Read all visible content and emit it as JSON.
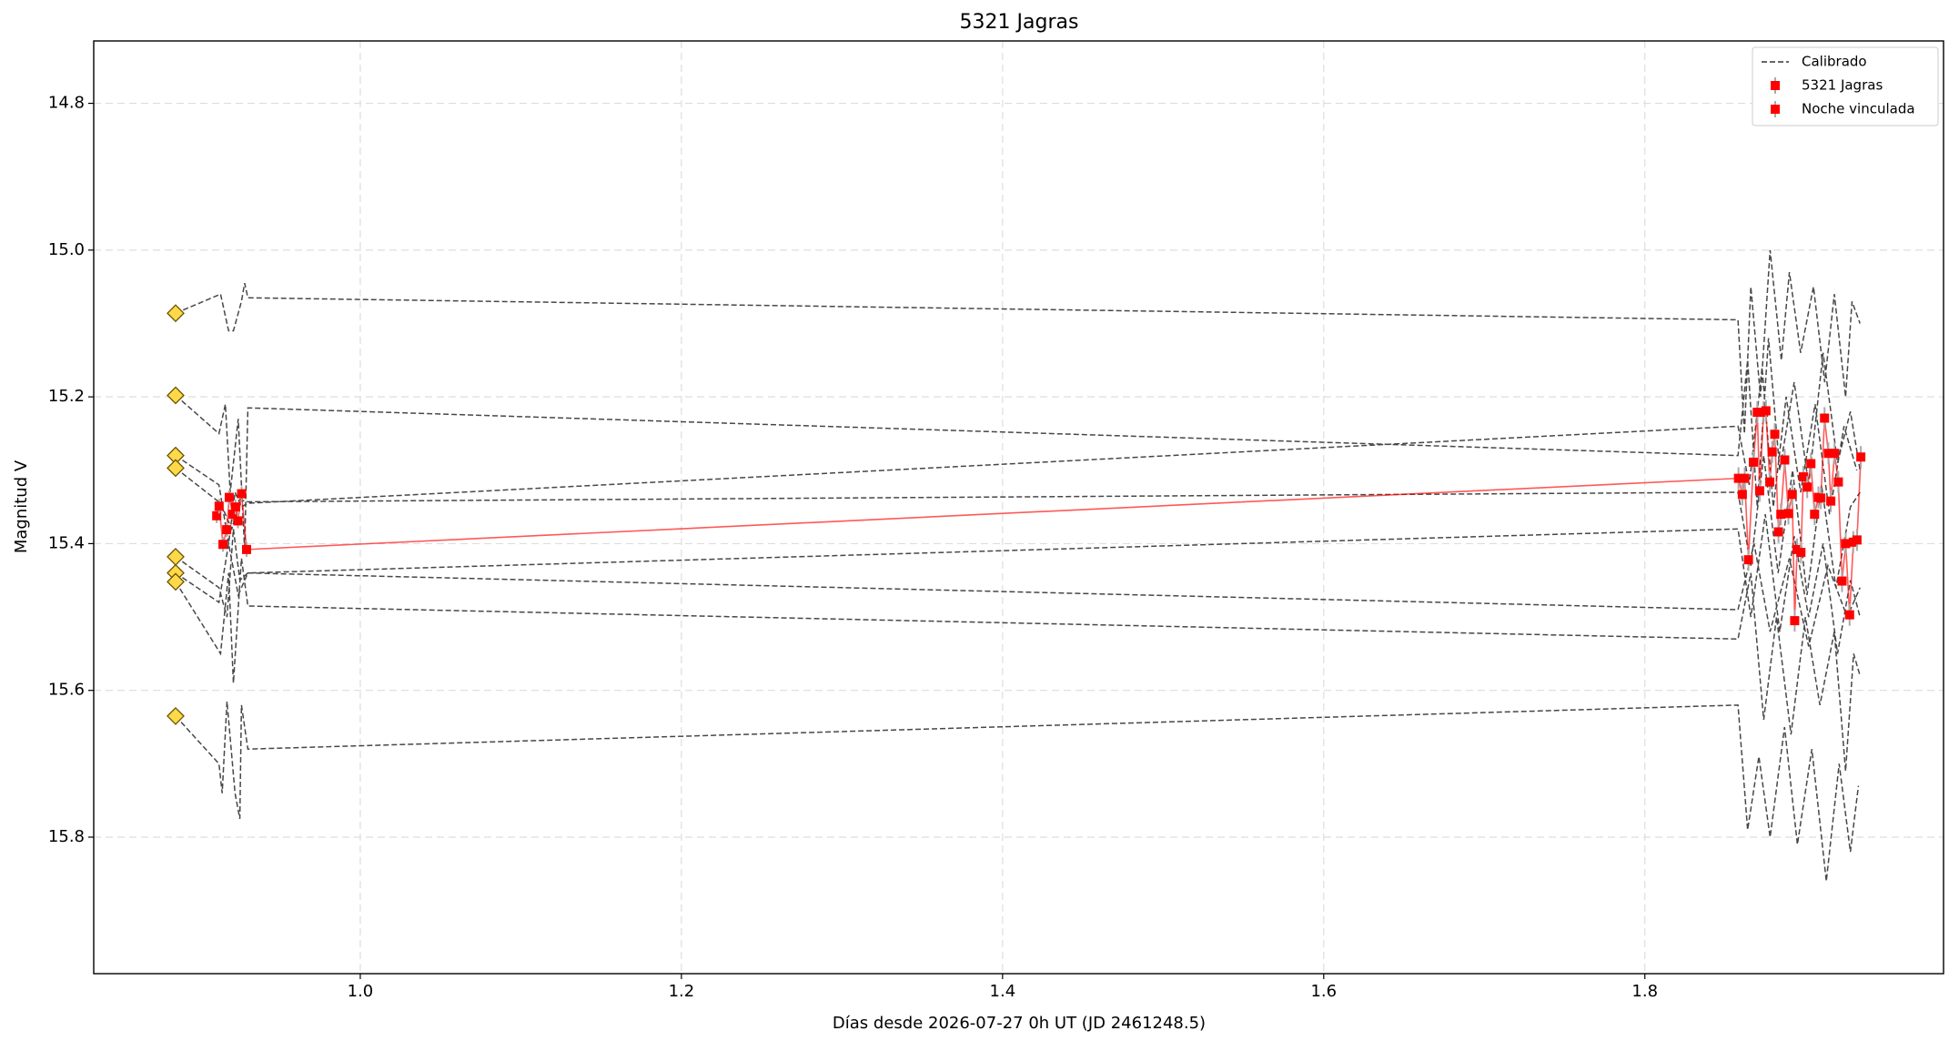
{
  "chart_data": {
    "type": "line",
    "title": "5321 Jagras",
    "x_label": "Días desde 2026-07-27 0h UT (JD 2461248.5)",
    "y_label": "Magnitud V",
    "xlim": [
      0.834,
      1.986
    ],
    "ylim": [
      14.715,
      15.986
    ],
    "y_inverted": true,
    "xticks": [
      {
        "value": 1.0,
        "label": "1.0"
      },
      1.2,
      1.4,
      1.6,
      1.8
    ],
    "yticks": [
      14.8,
      {
        "value": 15.0,
        "label": "15.0"
      },
      15.2,
      15.4,
      15.6,
      15.8
    ],
    "grid": true,
    "legend": "upper right",
    "catalog_markers": {
      "color": "#ffd94a",
      "x": [
        0.885,
        0.885,
        0.885,
        0.885,
        0.885,
        0.885,
        0.885,
        0.885
      ],
      "values": [
        15.086,
        15.198,
        15.28,
        15.297,
        15.418,
        15.44,
        15.452,
        15.635
      ]
    },
    "series": [
      {
        "name": "Calibrado",
        "color": "#333333",
        "style": "dashed",
        "x": [
          0.885,
          0.913,
          0.918,
          0.921,
          0.926,
          0.928,
          0.93,
          1.858,
          1.862,
          1.866,
          1.872,
          1.878,
          1.885,
          1.89,
          1.897,
          1.905,
          1.912,
          1.918,
          1.925,
          1.929,
          1.934,
          null,
          0.885,
          0.912,
          0.916,
          0.919,
          0.924,
          0.928,
          0.93,
          1.858,
          1.864,
          1.87,
          1.877,
          1.884,
          1.893,
          1.902,
          1.911,
          1.92,
          1.928,
          1.934,
          null,
          0.885,
          0.912,
          0.918,
          0.922,
          0.926,
          0.93,
          1.858,
          1.865,
          1.873,
          1.88,
          1.888,
          1.897,
          1.906,
          1.915,
          1.924,
          1.932,
          null,
          0.885,
          0.913,
          0.92,
          0.925,
          0.93,
          1.858,
          1.866,
          1.874,
          1.883,
          1.892,
          1.901,
          1.91,
          1.919,
          1.928,
          1.934,
          null,
          0.885,
          0.912,
          0.917,
          0.921,
          0.925,
          0.93,
          1.858,
          1.866,
          1.875,
          1.884,
          1.893,
          1.902,
          1.911,
          1.92,
          1.928,
          1.934,
          null,
          0.885,
          0.912,
          0.918,
          0.924,
          0.93,
          1.858,
          1.868,
          1.878,
          1.89,
          1.902,
          1.914,
          1.926,
          1.934,
          null,
          0.885,
          0.913,
          0.918,
          0.921,
          0.926,
          0.93,
          1.858,
          1.866,
          1.874,
          1.882,
          1.891,
          1.9,
          1.909,
          1.918,
          1.925,
          1.93,
          1.934,
          null,
          0.885,
          0.912,
          0.914,
          0.917,
          0.922,
          0.925,
          0.926,
          0.93,
          1.858,
          1.864,
          1.871,
          1.878,
          1.887,
          1.895,
          1.904,
          1.913,
          1.921,
          1.928,
          1.933
        ],
        "values": [
          15.086,
          15.06,
          15.11,
          15.11,
          15.07,
          15.045,
          15.065,
          15.095,
          15.25,
          15.05,
          15.2,
          15.0,
          15.15,
          15.03,
          15.14,
          15.05,
          15.18,
          15.06,
          15.2,
          15.07,
          15.1,
          null,
          15.198,
          15.25,
          15.21,
          15.33,
          15.23,
          15.41,
          15.215,
          15.28,
          15.15,
          15.35,
          15.12,
          15.3,
          15.18,
          15.32,
          15.14,
          15.29,
          15.22,
          15.3,
          null,
          15.28,
          15.32,
          15.4,
          15.33,
          15.35,
          15.345,
          15.24,
          15.32,
          15.16,
          15.35,
          15.2,
          15.33,
          15.21,
          15.36,
          15.24,
          15.3,
          null,
          15.297,
          15.345,
          15.38,
          15.34,
          15.343,
          15.33,
          15.43,
          15.28,
          15.44,
          15.3,
          15.47,
          15.32,
          15.46,
          15.35,
          15.33,
          null,
          15.418,
          15.46,
          15.5,
          15.38,
          15.45,
          15.44,
          15.38,
          15.5,
          15.36,
          15.52,
          15.39,
          15.5,
          15.4,
          15.55,
          15.45,
          15.5,
          null,
          15.44,
          15.48,
          15.4,
          15.47,
          15.44,
          15.49,
          15.4,
          15.52,
          15.42,
          15.54,
          15.43,
          15.5,
          15.46,
          null,
          15.452,
          15.55,
          15.44,
          15.59,
          15.42,
          15.485,
          15.53,
          15.44,
          15.64,
          15.5,
          15.66,
          15.5,
          15.62,
          15.52,
          15.71,
          15.55,
          15.58,
          null,
          15.635,
          15.7,
          15.74,
          15.615,
          15.74,
          15.775,
          15.62,
          15.68,
          15.62,
          15.79,
          15.69,
          15.8,
          15.65,
          15.81,
          15.68,
          15.86,
          15.7,
          15.82,
          15.73
        ]
      },
      {
        "name": "5321 Jagras",
        "color": "#ff0000",
        "x": [
          0.9106,
          0.9121,
          0.9145,
          0.9168,
          0.9184,
          0.9207,
          0.9223,
          0.9238,
          0.9261,
          0.9292
        ],
        "values": [
          15.362,
          15.349,
          15.401,
          15.381,
          15.337,
          15.36,
          15.35,
          15.369,
          15.332,
          15.408
        ],
        "errors": [
          0.01,
          0.01,
          0.01,
          0.01,
          0.01,
          0.01,
          0.01,
          0.01,
          0.01,
          0.01
        ]
      },
      {
        "name": "Noche vinculada",
        "color": "#ff0000",
        "x": [
          1.8583,
          1.8607,
          1.8622,
          1.8645,
          1.8676,
          1.87,
          1.8715,
          1.8739,
          1.8754,
          1.8778,
          1.8793,
          1.8809,
          1.8832,
          1.8847,
          1.8871,
          1.8894,
          1.8918,
          1.8933,
          1.8948,
          1.8972,
          1.8987,
          1.9011,
          1.9034,
          1.9057,
          1.9081,
          1.9096,
          1.9119,
          1.9143,
          1.9158,
          1.9181,
          1.9205,
          1.9228,
          1.9251,
          1.9275,
          1.9298,
          1.9321,
          1.9345
        ],
        "values": [
          15.311,
          15.333,
          15.311,
          15.422,
          15.289,
          15.221,
          15.328,
          15.221,
          15.219,
          15.316,
          15.275,
          15.251,
          15.384,
          15.36,
          15.286,
          15.359,
          15.333,
          15.505,
          15.408,
          15.412,
          15.309,
          15.323,
          15.291,
          15.36,
          15.337,
          15.338,
          15.229,
          15.277,
          15.342,
          15.277,
          15.316,
          15.451,
          15.4,
          15.497,
          15.398,
          15.395,
          15.282
        ],
        "errors": [
          0.015,
          0.015,
          0.015,
          0.015,
          0.015,
          0.015,
          0.015,
          0.015,
          0.015,
          0.015,
          0.015,
          0.015,
          0.015,
          0.015,
          0.015,
          0.015,
          0.015,
          0.015,
          0.015,
          0.015,
          0.015,
          0.015,
          0.015,
          0.015,
          0.015,
          0.015,
          0.015,
          0.015,
          0.015,
          0.015,
          0.015,
          0.015,
          0.015,
          0.015,
          0.015,
          0.015,
          0.015
        ]
      }
    ]
  }
}
